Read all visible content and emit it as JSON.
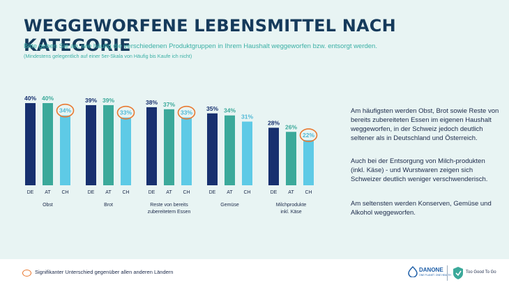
{
  "header": {
    "title": "WEGGEWORFENE LEBENSMITTEL NACH KATEGORIE",
    "subtitle": "Bitte geben Sie an, wie häufig die verschiedenen Produktgruppen in Ihrem Haushalt weggeworfen bzw. entsorgt werden.",
    "note": "(Mindestens gelegentlich auf einer 5er-Skala von Häufig bis Kaufe ich nicht)"
  },
  "chart_data": {
    "type": "bar",
    "categories": [
      "Obst",
      "Brot",
      "Reste von bereits zubereitetem Essen",
      "Gemüse",
      "Milchprodukte inkl. Käse"
    ],
    "category_lines": [
      [
        "Obst"
      ],
      [
        "Brot"
      ],
      [
        "Reste von bereits",
        "zubereitetem Essen"
      ],
      [
        "Gemüse"
      ],
      [
        "Milchprodukte",
        "inkl. Käse"
      ]
    ],
    "series": [
      {
        "name": "DE",
        "values": [
          40,
          39,
          38,
          35,
          28
        ]
      },
      {
        "name": "AT",
        "values": [
          40,
          39,
          37,
          34,
          26
        ]
      },
      {
        "name": "CH",
        "values": [
          34,
          33,
          33,
          31,
          22
        ]
      }
    ],
    "data_labels": [
      [
        "40%",
        "39%",
        "38%",
        "35%",
        "28%"
      ],
      [
        "40%",
        "39%",
        "37%",
        "34%",
        "26%"
      ],
      [
        "34%",
        "33%",
        "33%",
        "31%",
        "22%"
      ]
    ],
    "highlighted": [
      [
        2,
        0
      ],
      [
        2,
        1
      ],
      [
        2,
        2
      ],
      [
        2,
        4
      ]
    ],
    "colors": {
      "DE": "#17306f",
      "AT": "#3ba99a",
      "CH": "#5ecae6",
      "highlight": "#e9782f"
    },
    "ylim": [
      0,
      40
    ],
    "grid": false,
    "legend": "below bars per group"
  },
  "side_text": {
    "p1": "Am häufigsten werden Obst, Brot sowie Reste von bereits zubereiteten Essen im eigenen Haushalt weggeworfen, in der Schweiz jedoch deutlich seltener als in Deutschland und Österreich.",
    "p2": "Auch bei der Entsorgung von Milch-produkten (inkl. Käse) - und Wurstwaren zeigen sich Schweizer deutlich weniger verschwenderisch.",
    "p3": "Am seltensten werden Konserven, Gemüse und Alkohol weggeworfen."
  },
  "footer": {
    "legend_text": "Signifikanter Unterschied gegenüber allen anderen Ländern",
    "logo1_name": "DANONE",
    "logo1_sub": "ONE PLANET. ONE HEALTH",
    "logo2_name": "Too Good To Go"
  }
}
